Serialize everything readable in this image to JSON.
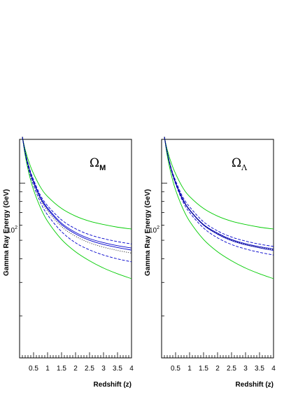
{
  "chart_data": [
    {
      "type": "line",
      "symbol": "Ω",
      "symbol_sub": "M",
      "ylabel": "Gamma Ray Energy (GeV)",
      "xlabel": "Redshift (z)",
      "xlim": [
        0,
        4
      ],
      "ylim_log10": [
        1.08,
        2.23
      ],
      "y_scale": "log",
      "x_ticks": [
        0.5,
        1,
        1.5,
        2,
        2.5,
        3,
        3.5,
        4
      ],
      "x_tick_labels": [
        "0.5",
        "1",
        "1.5",
        "2",
        "2.5",
        "3",
        "3.5",
        "4"
      ],
      "y_tick_label": "10",
      "y_tick_label_exp": "2",
      "y_tick_value": 100,
      "grid": false,
      "colors": {
        "green": "#00cc00",
        "blue": "#0000cc",
        "black": "#000000"
      },
      "series": [
        {
          "color": "green",
          "style": "solid",
          "x": [
            0.1,
            0.2,
            0.35,
            0.5,
            0.75,
            1,
            1.5,
            2,
            2.5,
            3,
            3.5,
            4
          ],
          "y": [
            175,
            150,
            127,
            112,
            95,
            85,
            73.5,
            67,
            63,
            60.5,
            58.6,
            57.3
          ]
        },
        {
          "color": "green",
          "style": "solid",
          "x": [
            0.1,
            0.2,
            0.35,
            0.5,
            0.75,
            1,
            1.5,
            2,
            2.5,
            3,
            3.5,
            4
          ],
          "y": [
            175,
            140,
            110,
            92,
            74,
            63,
            50.5,
            43.5,
            39,
            35.7,
            33.3,
            31.4
          ]
        },
        {
          "color": "blue",
          "style": "solid",
          "x": [
            0.1,
            0.2,
            0.35,
            0.5,
            0.75,
            1,
            1.5,
            2,
            2.5,
            3,
            3.5,
            4
          ],
          "y": [
            175,
            145,
            118,
            102,
            84,
            74,
            61.5,
            55,
            51,
            48.6,
            46.8,
            45.5
          ]
        },
        {
          "color": "blue",
          "style": "solid",
          "x": [
            0.1,
            0.2,
            0.35,
            0.5,
            0.75,
            1,
            1.5,
            2,
            2.5,
            3,
            3.5,
            4
          ],
          "y": [
            175,
            145,
            118,
            101,
            83,
            73,
            60.5,
            54,
            50,
            47.5,
            45.8,
            44.4
          ]
        },
        {
          "color": "blue",
          "style": "dashed",
          "x": [
            0.1,
            0.2,
            0.35,
            0.5,
            0.75,
            1,
            1.5,
            2,
            2.5,
            3,
            3.5,
            4
          ],
          "y": [
            175,
            146,
            120,
            104,
            86,
            76,
            64,
            57.5,
            53.5,
            51,
            49.2,
            47.8
          ]
        },
        {
          "color": "blue",
          "style": "dashed",
          "x": [
            0.1,
            0.2,
            0.35,
            0.5,
            0.75,
            1,
            1.5,
            2,
            2.5,
            3,
            3.5,
            4
          ],
          "y": [
            175,
            143,
            114,
            97,
            79,
            68,
            55.5,
            48.5,
            44.5,
            41.8,
            39.9,
            38.5
          ]
        },
        {
          "color": "black",
          "style": "dotted",
          "x": [
            0.1,
            0.2,
            0.35,
            0.5,
            0.75,
            1,
            1.5,
            2,
            2.5,
            3,
            3.5,
            4
          ],
          "y": [
            175,
            145,
            117,
            100,
            82,
            71.5,
            59,
            52.5,
            48.5,
            46,
            44.2,
            42.8
          ]
        }
      ]
    },
    {
      "type": "line",
      "symbol": "Ω",
      "symbol_sub": "Λ",
      "ylabel": "Gamma Ray Energy (GeV)",
      "xlabel": "Redshift (z)",
      "xlim": [
        0,
        4
      ],
      "ylim_log10": [
        1.08,
        2.23
      ],
      "y_scale": "log",
      "x_ticks": [
        0.5,
        1,
        1.5,
        2,
        2.5,
        3,
        3.5,
        4
      ],
      "x_tick_labels": [
        "0.5",
        "1",
        "1.5",
        "2",
        "2.5",
        "3",
        "3.5",
        "4"
      ],
      "y_tick_label": "10",
      "y_tick_label_exp": "2",
      "y_tick_value": 100,
      "grid": false,
      "colors": {
        "green": "#00cc00",
        "blue": "#0000cc",
        "black": "#000000"
      },
      "series": [
        {
          "color": "green",
          "style": "solid",
          "x": [
            0.1,
            0.2,
            0.35,
            0.5,
            0.75,
            1,
            1.5,
            2,
            2.5,
            3,
            3.5,
            4
          ],
          "y": [
            175,
            150,
            127,
            112,
            95,
            85,
            73.5,
            67,
            63,
            60.5,
            58.6,
            57.3
          ]
        },
        {
          "color": "green",
          "style": "solid",
          "x": [
            0.1,
            0.2,
            0.35,
            0.5,
            0.75,
            1,
            1.5,
            2,
            2.5,
            3,
            3.5,
            4
          ],
          "y": [
            175,
            140,
            110,
            92,
            74,
            63,
            50.5,
            43.5,
            39,
            35.7,
            33.3,
            31.4
          ]
        },
        {
          "color": "blue",
          "style": "solid",
          "x": [
            0.1,
            0.2,
            0.35,
            0.5,
            0.75,
            1,
            1.5,
            2,
            2.5,
            3,
            3.5,
            4
          ],
          "y": [
            175,
            145,
            118,
            101,
            83,
            72.5,
            60.5,
            54.5,
            50.5,
            48,
            46.3,
            45
          ]
        },
        {
          "color": "blue",
          "style": "solid",
          "x": [
            0.1,
            0.2,
            0.35,
            0.5,
            0.75,
            1,
            1.5,
            2,
            2.5,
            3,
            3.5,
            4
          ],
          "y": [
            175,
            145,
            117,
            100,
            82,
            72,
            60,
            53.8,
            49.8,
            47.3,
            45.6,
            44.2
          ]
        },
        {
          "color": "blue",
          "style": "dashed",
          "x": [
            0.1,
            0.2,
            0.35,
            0.5,
            0.75,
            1,
            1.5,
            2,
            2.5,
            3,
            3.5,
            4
          ],
          "y": [
            175,
            146,
            119,
            103,
            85,
            75,
            62.5,
            56,
            52,
            49.5,
            47.7,
            46.4
          ]
        },
        {
          "color": "blue",
          "style": "dashed",
          "x": [
            0.1,
            0.2,
            0.35,
            0.5,
            0.75,
            1,
            1.5,
            2,
            2.5,
            3,
            3.5,
            4
          ],
          "y": [
            175,
            144,
            116,
            99,
            80.5,
            70,
            58,
            51.5,
            47.5,
            45,
            43.2,
            41.8
          ]
        },
        {
          "color": "black",
          "style": "dotted",
          "x": [
            0.1,
            0.2,
            0.35,
            0.5,
            0.75,
            1,
            1.5,
            2,
            2.5,
            3,
            3.5,
            4
          ],
          "y": [
            175,
            145,
            117.5,
            100.5,
            82.5,
            72.3,
            60.2,
            54.1,
            50.1,
            47.6,
            45.9,
            44.6
          ]
        }
      ]
    }
  ]
}
